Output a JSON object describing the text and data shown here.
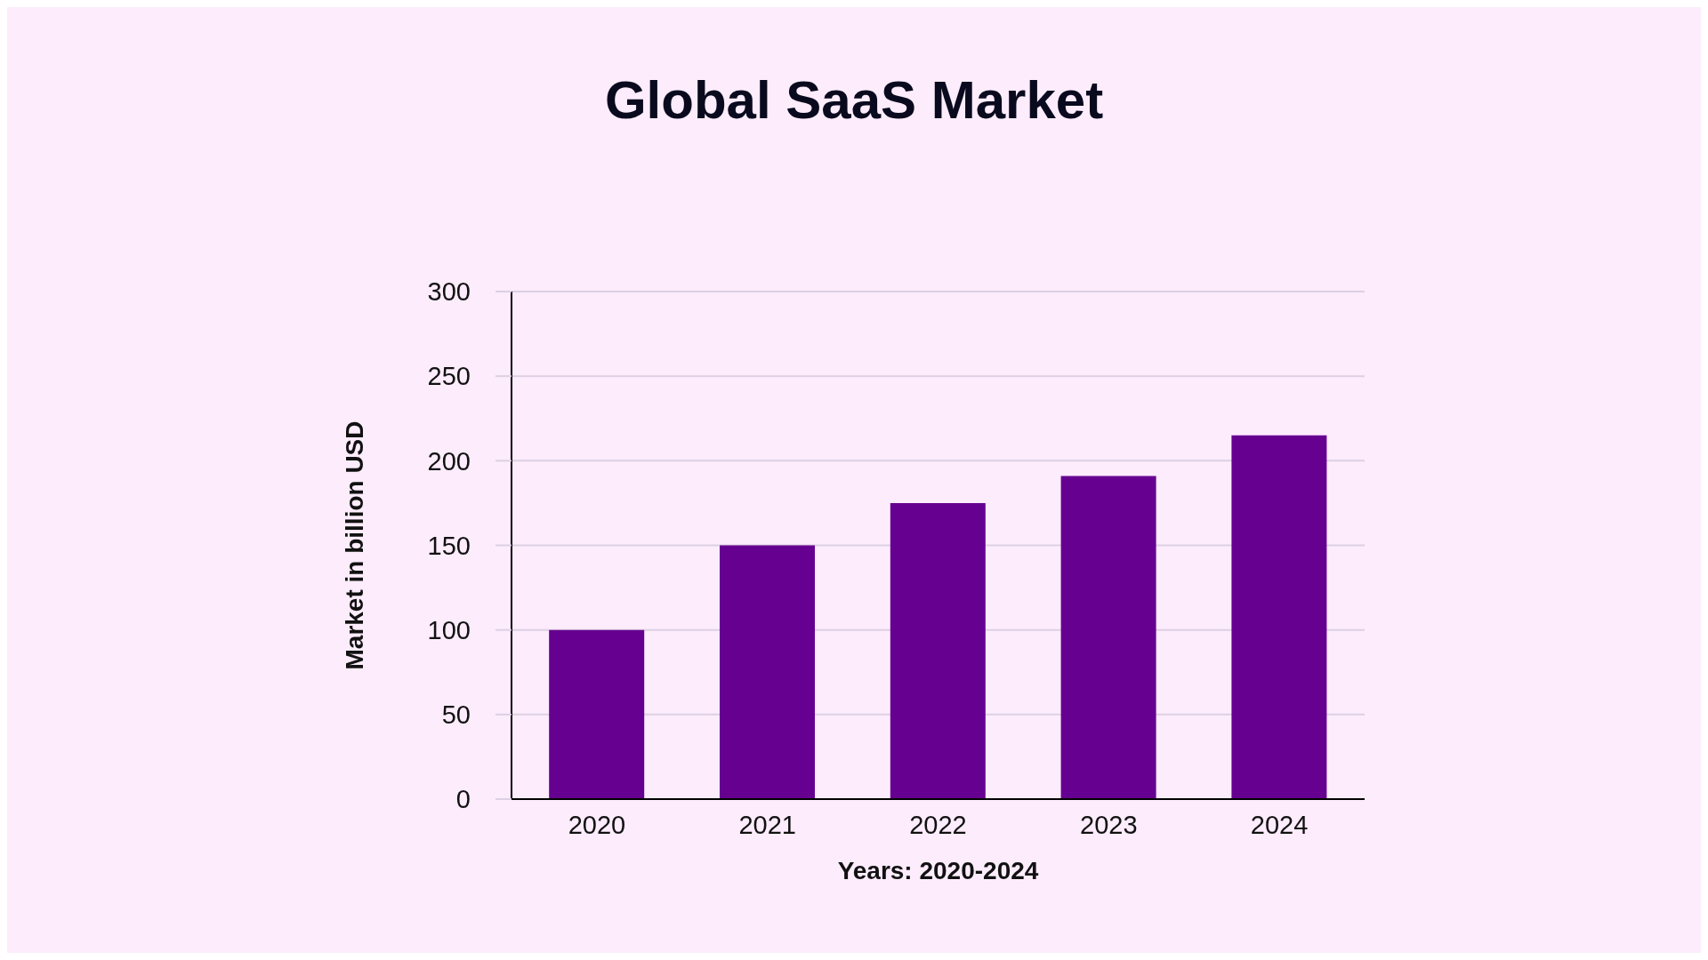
{
  "chart_data": {
    "type": "bar",
    "title": "Global SaaS Market",
    "xlabel": "Years: 2020-2024",
    "ylabel": "Market in billion USD",
    "categories": [
      "2020",
      "2021",
      "2022",
      "2023",
      "2024"
    ],
    "values": [
      100,
      150,
      175,
      191,
      215
    ],
    "color": "#660090",
    "ylim": [
      0,
      300
    ],
    "yticks": [
      0,
      50,
      100,
      150,
      200,
      250,
      300
    ],
    "grid": "y",
    "legend": false
  }
}
